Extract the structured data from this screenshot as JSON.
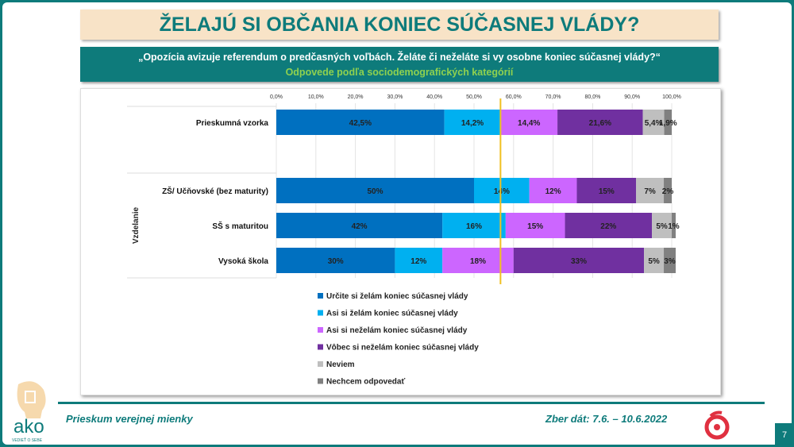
{
  "title": "ŽELAJÚ SI OBČANIA KONIEC SÚČASNEJ VLÁDY?",
  "question": "„Opozícia avizuje referendum o predčasných voľbách. Želáte či neželáte si vy osobne koniec súčasnej vlády?“",
  "subtitle": "Odpovede podľa sociodemografických kategórií",
  "footer": {
    "left": "Prieskum verejnej mienky",
    "right": "Zber dát: 7.6. – 10.6.2022",
    "page": "7",
    "logo_text": "ako",
    "logo_tagline": "VEDIEŤ O SEBE"
  },
  "chart_data": {
    "type": "bar",
    "orientation": "horizontal",
    "stacked": true,
    "xlim": [
      0,
      100
    ],
    "x_ticks": [
      "0,0%",
      "10,0%",
      "20,0%",
      "30,0%",
      "40,0%",
      "50,0%",
      "60,0%",
      "70,0%",
      "80,0%",
      "90,0%",
      "100,0%"
    ],
    "group_label": "Vzdelanie",
    "categories": [
      "Prieskumná vzorka",
      "ZŠ/ Učňovské (bez maturity)",
      "SŠ s maturitou",
      "Vysoká škola"
    ],
    "series": [
      {
        "name": "Určite si želám koniec súčasnej vlády",
        "color": "#0070c0",
        "values": [
          42.5,
          50,
          42,
          30
        ],
        "labels": [
          "42,5%",
          "50%",
          "42%",
          "30%"
        ]
      },
      {
        "name": "Asi si želám koniec súčasnej vlády",
        "color": "#00b0f0",
        "values": [
          14.2,
          14,
          16,
          12
        ],
        "labels": [
          "14,2%",
          "14%",
          "16%",
          "12%"
        ]
      },
      {
        "name": "Asi si neželám koniec súčasnej vlády",
        "color": "#cc66ff",
        "values": [
          14.4,
          12,
          15,
          18
        ],
        "labels": [
          "14,4%",
          "12%",
          "15%",
          "18%"
        ]
      },
      {
        "name": "Vôbec si neželám koniec súčasnej vlády",
        "color": "#7030a0",
        "values": [
          21.6,
          15,
          22,
          33
        ],
        "labels": [
          "21,6%",
          "15%",
          "22%",
          "33%"
        ]
      },
      {
        "name": "Neviem",
        "color": "#bfbfbf",
        "values": [
          5.4,
          7,
          5,
          5
        ],
        "labels": [
          "5,4%",
          "7%",
          "5%",
          "5%"
        ]
      },
      {
        "name": "Nechcem odpovedať",
        "color": "#808080",
        "values": [
          1.9,
          2,
          1,
          3
        ],
        "labels": [
          "1,9%",
          "2%",
          "1%",
          "3%"
        ]
      }
    ],
    "reference_line": {
      "value": 56.7,
      "color": "#f0c020"
    },
    "legend_position": "bottom"
  }
}
